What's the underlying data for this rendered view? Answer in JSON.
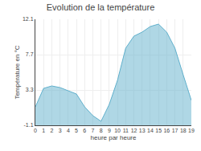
{
  "chart_data": {
    "type": "area",
    "title": "Evolution de la température",
    "x_label": "heure par heure",
    "y_label": "Température en °C",
    "x": [
      0,
      1,
      2,
      3,
      4,
      5,
      6,
      7,
      8,
      9,
      10,
      11,
      12,
      13,
      14,
      15,
      16,
      17,
      18,
      19
    ],
    "values": [
      1.2,
      3.5,
      3.8,
      3.6,
      3.2,
      2.8,
      1.2,
      0.1,
      -0.6,
      1.5,
      4.5,
      8.5,
      10.0,
      10.5,
      11.2,
      11.5,
      10.5,
      8.5,
      5.2,
      2.0
    ],
    "color": "#60b0cc",
    "xlim": [
      0,
      19
    ],
    "ylim": [
      -1.1,
      12.1
    ],
    "xticks": [
      0,
      1,
      2,
      3,
      4,
      5,
      6,
      7,
      8,
      9,
      10,
      11,
      12,
      13,
      14,
      15,
      16,
      17,
      18,
      19
    ],
    "yticks": [
      -1.1,
      3.3,
      7.7,
      12.1
    ],
    "grid": true
  }
}
